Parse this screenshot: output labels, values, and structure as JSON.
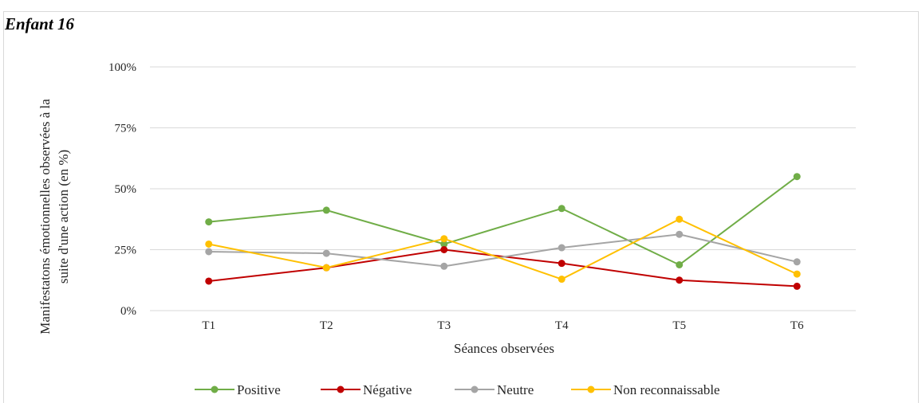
{
  "heading": "Enfant 16",
  "chart_data": {
    "type": "line",
    "title": "",
    "xlabel": "Séances observées",
    "ylabel_lines": [
      "Manifestatons émotionnelles observées à la",
      "suite d'une action (en %)"
    ],
    "ylim": [
      0,
      100
    ],
    "yticks": [
      0,
      25,
      50,
      75,
      100
    ],
    "ytick_labels": [
      "0%",
      "25%",
      "50%",
      "75%",
      "100%"
    ],
    "grid": true,
    "legend_position": "bottom",
    "categories": [
      "T1",
      "T2",
      "T3",
      "T4",
      "T5",
      "T6"
    ],
    "series": [
      {
        "name": "Positive",
        "color": "#70ad47",
        "values": [
          36.4,
          41.2,
          27.3,
          41.9,
          18.8,
          55.0
        ]
      },
      {
        "name": "Négative",
        "color": "#c00000",
        "values": [
          12.1,
          17.6,
          25.0,
          19.4,
          12.5,
          10.0
        ]
      },
      {
        "name": "Neutre",
        "color": "#a5a5a5",
        "values": [
          24.2,
          23.5,
          18.2,
          25.8,
          31.3,
          20.0
        ]
      },
      {
        "name": "Non reconnaissable",
        "color": "#ffc000",
        "values": [
          27.3,
          17.6,
          29.5,
          12.9,
          37.5,
          15.0
        ]
      }
    ]
  }
}
